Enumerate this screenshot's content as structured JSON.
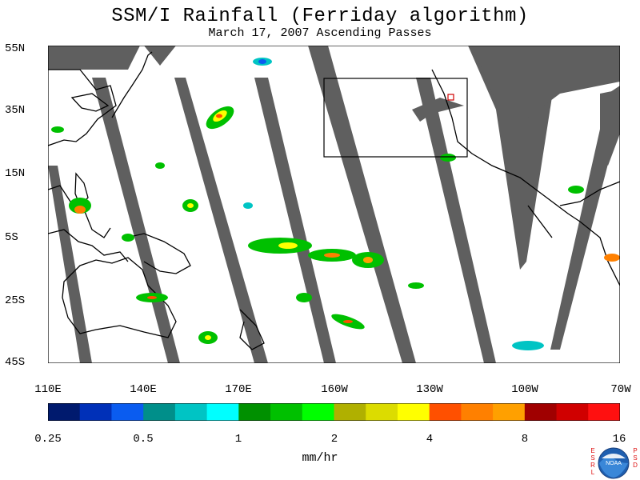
{
  "header": {
    "title": "SSM/I Rainfall (Ferriday algorithm)",
    "subtitle": "March 17, 2007  Ascending Passes"
  },
  "axes": {
    "lat_labels": [
      "55N",
      "35N",
      "15N",
      "5S",
      "25S",
      "45S"
    ],
    "lon_labels": [
      "110E",
      "140E",
      "170E",
      "160W",
      "130W",
      "100W",
      "70W"
    ]
  },
  "colorbar": {
    "units": "mm/hr",
    "tick_labels": [
      "0.25",
      "0.5",
      "1",
      "2",
      "4",
      "8",
      "16"
    ],
    "colors": [
      "#001a6e",
      "#0030b8",
      "#0a5cf0",
      "#008f8a",
      "#00c4c4",
      "#00ffff",
      "#009000",
      "#00c000",
      "#00ff00",
      "#b0b000",
      "#dcdc00",
      "#ffff00",
      "#ff5000",
      "#ff8000",
      "#ffa000",
      "#a00000",
      "#d00000",
      "#ff1010"
    ]
  },
  "map": {
    "land_color": "#000000",
    "swath_color": "#5f5f5f",
    "no_data_color": "#5f5f5f"
  },
  "branding": {
    "left_text": "ESRL",
    "right_text": "PSD",
    "logo_label": "NOAA"
  }
}
